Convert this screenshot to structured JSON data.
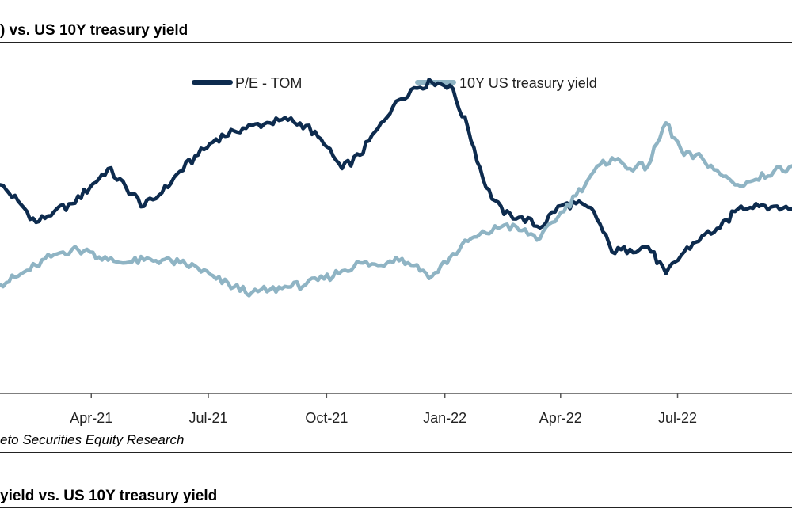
{
  "titles": {
    "top": ") vs. US 10Y treasury yield",
    "bottom": "yield vs. US 10Y treasury yield"
  },
  "source": "eto Securities Equity Research",
  "chart_data": {
    "type": "line",
    "title": ") vs. US 10Y treasury yield",
    "xlabel": "",
    "ylabel": "",
    "x_range": [
      "2021-01-20",
      "2022-09-28"
    ],
    "x_ticks": [
      "Apr-21",
      "Jul-21",
      "Oct-21",
      "Jan-22",
      "Apr-22",
      "Jul-22"
    ],
    "x_tick_dates": [
      "2021-04-01",
      "2021-07-01",
      "2021-10-01",
      "2022-01-01",
      "2022-04-01",
      "2022-07-01"
    ],
    "legend_position": "top-center",
    "grid": false,
    "series": [
      {
        "name": "P/E - TOM",
        "color": "#0d2b4e",
        "relative_level_0_to_100": true,
        "points": [
          [
            "2021-01-20",
            59
          ],
          [
            "2021-02-03",
            53
          ],
          [
            "2021-02-17",
            45
          ],
          [
            "2021-03-03",
            49
          ],
          [
            "2021-03-17",
            52
          ],
          [
            "2021-03-31",
            58
          ],
          [
            "2021-04-14",
            65
          ],
          [
            "2021-04-28",
            58
          ],
          [
            "2021-05-12",
            51
          ],
          [
            "2021-05-26",
            56
          ],
          [
            "2021-06-09",
            64
          ],
          [
            "2021-06-23",
            70
          ],
          [
            "2021-07-07",
            76
          ],
          [
            "2021-07-21",
            79
          ],
          [
            "2021-08-04",
            81
          ],
          [
            "2021-08-18",
            82
          ],
          [
            "2021-09-01",
            83
          ],
          [
            "2021-09-15",
            81
          ],
          [
            "2021-09-29",
            74
          ],
          [
            "2021-10-13",
            65
          ],
          [
            "2021-10-27",
            70
          ],
          [
            "2021-11-10",
            80
          ],
          [
            "2021-11-24",
            90
          ],
          [
            "2021-12-08",
            95
          ],
          [
            "2021-12-22",
            97
          ],
          [
            "2022-01-05",
            96
          ],
          [
            "2022-01-19",
            80
          ],
          [
            "2022-02-02",
            58
          ],
          [
            "2022-02-16",
            48
          ],
          [
            "2022-03-02",
            47
          ],
          [
            "2022-03-16",
            43
          ],
          [
            "2022-03-30",
            51
          ],
          [
            "2022-04-13",
            52
          ],
          [
            "2022-04-27",
            49
          ],
          [
            "2022-05-11",
            34
          ],
          [
            "2022-05-25",
            35
          ],
          [
            "2022-06-08",
            36
          ],
          [
            "2022-06-22",
            26
          ],
          [
            "2022-07-06",
            34
          ],
          [
            "2022-07-20",
            40
          ],
          [
            "2022-08-03",
            43
          ],
          [
            "2022-08-17",
            50
          ],
          [
            "2022-08-31",
            52
          ],
          [
            "2022-09-14",
            51
          ],
          [
            "2022-09-28",
            50
          ]
        ]
      },
      {
        "name": "10Y US treasury yield",
        "color": "#8fb4c4",
        "relative_level_0_to_100": true,
        "points": [
          [
            "2021-01-20",
            22
          ],
          [
            "2021-02-03",
            25
          ],
          [
            "2021-02-17",
            29
          ],
          [
            "2021-03-03",
            33
          ],
          [
            "2021-03-17",
            35
          ],
          [
            "2021-03-31",
            34
          ],
          [
            "2021-04-14",
            31
          ],
          [
            "2021-04-28",
            30
          ],
          [
            "2021-05-12",
            31
          ],
          [
            "2021-05-26",
            31
          ],
          [
            "2021-06-09",
            30
          ],
          [
            "2021-06-23",
            28
          ],
          [
            "2021-07-07",
            24
          ],
          [
            "2021-07-21",
            21
          ],
          [
            "2021-08-04",
            19
          ],
          [
            "2021-08-18",
            20
          ],
          [
            "2021-09-01",
            21
          ],
          [
            "2021-09-15",
            22
          ],
          [
            "2021-09-29",
            24
          ],
          [
            "2021-10-13",
            27
          ],
          [
            "2021-10-27",
            30
          ],
          [
            "2021-11-10",
            29
          ],
          [
            "2021-11-24",
            32
          ],
          [
            "2021-12-08",
            29
          ],
          [
            "2021-12-22",
            25
          ],
          [
            "2022-01-05",
            32
          ],
          [
            "2022-01-19",
            38
          ],
          [
            "2022-02-02",
            41
          ],
          [
            "2022-02-16",
            44
          ],
          [
            "2022-03-02",
            42
          ],
          [
            "2022-03-16",
            39
          ],
          [
            "2022-03-30",
            47
          ],
          [
            "2022-04-13",
            55
          ],
          [
            "2022-04-27",
            64
          ],
          [
            "2022-05-11",
            69
          ],
          [
            "2022-05-25",
            65
          ],
          [
            "2022-06-08",
            66
          ],
          [
            "2022-06-22",
            82
          ],
          [
            "2022-07-06",
            70
          ],
          [
            "2022-07-20",
            69
          ],
          [
            "2022-08-03",
            63
          ],
          [
            "2022-08-17",
            59
          ],
          [
            "2022-08-31",
            61
          ],
          [
            "2022-09-14",
            64
          ],
          [
            "2022-09-28",
            66
          ]
        ]
      }
    ]
  }
}
